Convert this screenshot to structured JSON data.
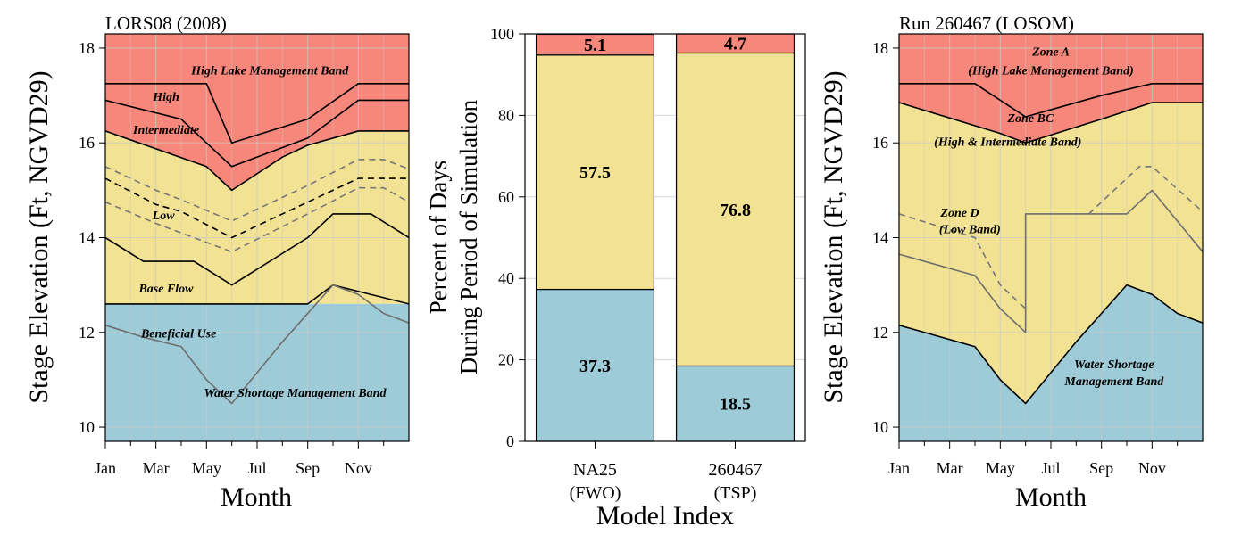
{
  "colors": {
    "red": "#f6877a",
    "yellow": "#f2e293",
    "blue": "#9dcbd7",
    "grid": "#c9c9c9",
    "gray_line": "#6e6e6e",
    "dash_gray": "#777777",
    "dash_black": "#000000"
  },
  "chart_data": [
    {
      "type": "area",
      "title": "LORS08 (2008)",
      "xlabel": "Month",
      "ylabel": "Stage Elevation (Ft, NGVD29)",
      "xlim": [
        0,
        12
      ],
      "ylim": [
        9.7,
        18.3
      ],
      "x_ticks": [
        {
          "x": 0,
          "label": "Jan"
        },
        {
          "x": 2,
          "label": "Mar"
        },
        {
          "x": 4,
          "label": "May"
        },
        {
          "x": 6,
          "label": "Jul"
        },
        {
          "x": 8,
          "label": "Sep"
        },
        {
          "x": 10,
          "label": "Nov"
        }
      ],
      "x_minor_ticks": [
        1,
        3,
        5,
        7,
        9,
        11
      ],
      "y_ticks": [
        10,
        12,
        14,
        16,
        18
      ],
      "grid": true,
      "zones": [
        {
          "name": "High Lake Management Band",
          "color": "red",
          "upper": [
            [
              0,
              18.3
            ],
            [
              12,
              18.3
            ]
          ],
          "lower": [
            [
              0,
              16.25
            ],
            [
              4,
              15.5
            ],
            [
              5,
              15.0
            ],
            [
              7,
              15.7
            ],
            [
              8,
              15.95
            ],
            [
              10,
              16.25
            ],
            [
              12,
              16.25
            ]
          ]
        },
        {
          "name": "Low",
          "color": "yellow",
          "upper": [
            [
              0,
              16.25
            ],
            [
              4,
              15.5
            ],
            [
              5,
              15.0
            ],
            [
              7,
              15.7
            ],
            [
              8,
              15.95
            ],
            [
              10,
              16.25
            ],
            [
              12,
              16.25
            ]
          ],
          "lower": [
            [
              0,
              12.6
            ],
            [
              12,
              12.6
            ]
          ]
        },
        {
          "name": "Water Shortage Management Band",
          "color": "blue",
          "upper": [
            [
              0,
              12.6
            ],
            [
              12,
              12.6
            ]
          ],
          "lower": [
            [
              0,
              9.7
            ],
            [
              12,
              9.7
            ]
          ]
        }
      ],
      "lines": [
        {
          "name": "upper",
          "style": "solid",
          "color": "black",
          "points": [
            [
              0,
              17.25
            ],
            [
              4,
              17.25
            ],
            [
              5,
              16.0
            ],
            [
              8,
              16.5
            ],
            [
              10,
              17.25
            ],
            [
              12,
              17.25
            ]
          ]
        },
        {
          "name": "high",
          "style": "solid",
          "color": "black",
          "points": [
            [
              0,
              16.9
            ],
            [
              3,
              16.5
            ],
            [
              5,
              15.5
            ],
            [
              8,
              16.1
            ],
            [
              10,
              16.9
            ],
            [
              12,
              16.9
            ]
          ]
        },
        {
          "name": "intermediate",
          "style": "solid",
          "color": "black",
          "points": [
            [
              0,
              16.25
            ],
            [
              4,
              15.5
            ],
            [
              5,
              15.0
            ],
            [
              7,
              15.7
            ],
            [
              8,
              15.95
            ],
            [
              10,
              16.25
            ],
            [
              12,
              16.25
            ]
          ]
        },
        {
          "name": "dash1",
          "style": "dash",
          "color": "dash_gray",
          "points": [
            [
              0,
              15.5
            ],
            [
              2,
              15.0
            ],
            [
              3,
              14.8
            ],
            [
              5,
              14.35
            ],
            [
              8,
              15.1
            ],
            [
              10,
              15.65
            ],
            [
              11,
              15.65
            ],
            [
              12,
              15.45
            ]
          ]
        },
        {
          "name": "dash2",
          "style": "dash",
          "color": "dash_black",
          "points": [
            [
              0,
              15.25
            ],
            [
              2,
              14.7
            ],
            [
              3,
              14.55
            ],
            [
              5,
              14.0
            ],
            [
              8,
              14.75
            ],
            [
              10,
              15.25
            ],
            [
              12,
              15.25
            ]
          ]
        },
        {
          "name": "dash3",
          "style": "dash",
          "color": "dash_gray",
          "points": [
            [
              0,
              14.75
            ],
            [
              2,
              14.3
            ],
            [
              3,
              14.1
            ],
            [
              5,
              13.7
            ],
            [
              8,
              14.5
            ],
            [
              10,
              15.05
            ],
            [
              11,
              15.05
            ],
            [
              12,
              14.75
            ]
          ]
        },
        {
          "name": "base-flow",
          "style": "solid",
          "color": "black",
          "points": [
            [
              0,
              14.0
            ],
            [
              1.5,
              13.5
            ],
            [
              3.5,
              13.5
            ],
            [
              5,
              13.0
            ],
            [
              8,
              14.0
            ],
            [
              9,
              14.5
            ],
            [
              10.5,
              14.5
            ],
            [
              12,
              14.0
            ]
          ]
        },
        {
          "name": "beneficial-use",
          "style": "solid",
          "color": "black",
          "points": [
            [
              0,
              12.6
            ],
            [
              8,
              12.6
            ],
            [
              9,
              13.0
            ],
            [
              12,
              12.6
            ]
          ]
        },
        {
          "name": "water-shortage",
          "style": "solid",
          "color": "gray_line",
          "points": [
            [
              0,
              12.15
            ],
            [
              1.5,
              11.9
            ],
            [
              3,
              11.7
            ],
            [
              4,
              11.0
            ],
            [
              5,
              10.5
            ],
            [
              7,
              11.8
            ],
            [
              9,
              13.0
            ],
            [
              10,
              12.8
            ],
            [
              11,
              12.4
            ],
            [
              12,
              12.2
            ]
          ]
        }
      ],
      "annotations": [
        {
          "text": "High Lake Management Band",
          "x": 6.5,
          "y": 17.5
        },
        {
          "text": "High",
          "x": 2.4,
          "y": 16.95
        },
        {
          "text": "Intermediate",
          "x": 2.4,
          "y": 16.25
        },
        {
          "text": "Low",
          "x": 2.3,
          "y": 14.45
        },
        {
          "text": "Base Flow",
          "x": 2.4,
          "y": 12.9
        },
        {
          "text": "Beneficial Use",
          "x": 2.9,
          "y": 11.95
        },
        {
          "text": "Water Shortage Management Band",
          "x": 7.5,
          "y": 10.7
        }
      ]
    },
    {
      "type": "bar",
      "stacked": true,
      "xlabel": "Model Index",
      "ylabel": "Percent of Days\nDuring Period of Simulation",
      "ylim": [
        0,
        100
      ],
      "y_ticks": [
        0,
        20,
        40,
        60,
        80,
        100
      ],
      "grid": true,
      "categories": [
        "NA25\n(FWO)",
        "260467\n(TSP)"
      ],
      "series": [
        {
          "color": "blue",
          "values": [
            37.3,
            18.5
          ]
        },
        {
          "color": "yellow",
          "values": [
            57.5,
            76.8
          ]
        },
        {
          "color": "red",
          "values": [
            5.1,
            4.7
          ]
        }
      ]
    },
    {
      "type": "area",
      "title": "Run 260467 (LOSOM)",
      "xlabel": "Month",
      "ylabel": "Stage Elevation (Ft, NGVD29)",
      "xlim": [
        0,
        12
      ],
      "ylim": [
        9.7,
        18.3
      ],
      "x_ticks": [
        {
          "x": 0,
          "label": "Jan"
        },
        {
          "x": 2,
          "label": "Mar"
        },
        {
          "x": 4,
          "label": "May"
        },
        {
          "x": 6,
          "label": "Jul"
        },
        {
          "x": 8,
          "label": "Sep"
        },
        {
          "x": 10,
          "label": "Nov"
        }
      ],
      "x_minor_ticks": [
        1,
        3,
        5,
        7,
        9,
        11
      ],
      "y_ticks": [
        10,
        12,
        14,
        16,
        18
      ],
      "grid": true,
      "zones": [
        {
          "name": "Zone A (High Lake Management Band)",
          "color": "red",
          "upper": [
            [
              0,
              18.3
            ],
            [
              12,
              18.3
            ]
          ],
          "lower": [
            [
              0,
              16.85
            ],
            [
              4,
              16.2
            ],
            [
              5,
              16.0
            ],
            [
              8,
              16.5
            ],
            [
              10,
              16.85
            ],
            [
              12,
              16.85
            ]
          ]
        },
        {
          "name": "Zone BC / Zone D",
          "color": "yellow",
          "upper": [
            [
              0,
              16.85
            ],
            [
              4,
              16.2
            ],
            [
              5,
              16.0
            ],
            [
              8,
              16.5
            ],
            [
              10,
              16.85
            ],
            [
              12,
              16.85
            ]
          ],
          "lower": [
            [
              0,
              12.15
            ],
            [
              1,
              12.0
            ],
            [
              3,
              11.7
            ],
            [
              4,
              11.0
            ],
            [
              5,
              10.5
            ],
            [
              7,
              11.8
            ],
            [
              9,
              13.0
            ],
            [
              10,
              12.8
            ],
            [
              11,
              12.4
            ],
            [
              12,
              12.2
            ]
          ]
        },
        {
          "name": "Water Shortage Management Band",
          "color": "blue",
          "upper": [
            [
              0,
              12.15
            ],
            [
              1,
              12.0
            ],
            [
              3,
              11.7
            ],
            [
              4,
              11.0
            ],
            [
              5,
              10.5
            ],
            [
              7,
              11.8
            ],
            [
              9,
              13.0
            ],
            [
              10,
              12.8
            ],
            [
              11,
              12.4
            ],
            [
              12,
              12.2
            ]
          ],
          "lower": [
            [
              0,
              9.7
            ],
            [
              12,
              9.7
            ]
          ]
        }
      ],
      "lines": [
        {
          "name": "upper",
          "style": "solid",
          "color": "black",
          "points": [
            [
              0,
              17.25
            ],
            [
              3,
              17.25
            ],
            [
              5,
              16.55
            ],
            [
              8,
              17.0
            ],
            [
              10,
              17.25
            ],
            [
              12,
              17.25
            ]
          ]
        },
        {
          "name": "zone-bc-top",
          "style": "solid",
          "color": "black",
          "points": [
            [
              0,
              16.85
            ],
            [
              4,
              16.2
            ],
            [
              5,
              16.0
            ],
            [
              8,
              16.5
            ],
            [
              10,
              16.85
            ],
            [
              12,
              16.85
            ]
          ]
        },
        {
          "name": "zone-d-dash-left",
          "style": "dash",
          "color": "dash_gray",
          "points": [
            [
              0,
              14.5
            ],
            [
              3,
              14.0
            ],
            [
              4,
              13.0
            ],
            [
              5,
              12.5
            ]
          ]
        },
        {
          "name": "zone-d-dash-right",
          "style": "dash",
          "color": "dash_gray",
          "points": [
            [
              7.5,
              14.5
            ],
            [
              9.5,
              15.5
            ],
            [
              10,
              15.5
            ],
            [
              12,
              14.55
            ]
          ]
        },
        {
          "name": "zone-d-solid",
          "style": "solid",
          "color": "gray_line",
          "points": [
            [
              0,
              13.65
            ],
            [
              3,
              13.2
            ],
            [
              4,
              12.5
            ],
            [
              5,
              12.0
            ],
            [
              5,
              14.5
            ],
            [
              9,
              14.5
            ],
            [
              10,
              15.0
            ],
            [
              12,
              13.7
            ]
          ]
        },
        {
          "name": "water-shortage-edge",
          "style": "solid",
          "color": "black",
          "points": [
            [
              0,
              12.15
            ],
            [
              1,
              12.0
            ],
            [
              3,
              11.7
            ],
            [
              4,
              11.0
            ],
            [
              5,
              10.5
            ],
            [
              7,
              11.8
            ],
            [
              9,
              13.0
            ],
            [
              10,
              12.8
            ],
            [
              11,
              12.4
            ],
            [
              12,
              12.2
            ]
          ]
        }
      ],
      "annotations": [
        {
          "text": "Zone A",
          "x": 6.0,
          "y": 17.9
        },
        {
          "text": "(High Lake Management Band)",
          "x": 6.0,
          "y": 17.5
        },
        {
          "text": "Zone BC",
          "x": 5.2,
          "y": 16.5
        },
        {
          "text": "(High & Intermediate Band)",
          "x": 4.3,
          "y": 16.0
        },
        {
          "text": "Zone D",
          "x": 2.4,
          "y": 14.5
        },
        {
          "text": "(Low Band)",
          "x": 2.8,
          "y": 14.15
        },
        {
          "text": "Water Shortage",
          "x": 8.5,
          "y": 11.3
        },
        {
          "text": "Management Band",
          "x": 8.5,
          "y": 10.95
        }
      ]
    }
  ]
}
